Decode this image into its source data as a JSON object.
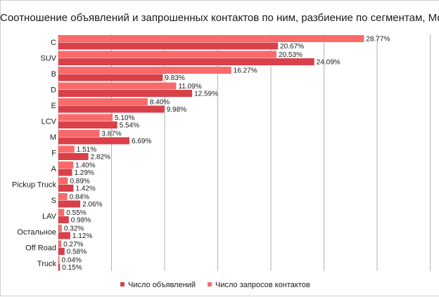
{
  "chart_data": {
    "type": "bar",
    "orientation": "horizontal",
    "title": "Соотношение объявлений и запрошенных контактов по ним, разбиение по сегментам, Москва, III квартал",
    "categories": [
      "C",
      "SUV",
      "B",
      "D",
      "E",
      "LCV",
      "M",
      "F",
      "A",
      "Pickup Truck",
      "S",
      "LAV",
      "Остальное",
      "Off Road",
      "Truck"
    ],
    "series": [
      {
        "name": "Число объявлений",
        "color": "#d9404a",
        "values": [
          20.67,
          24.09,
          9.83,
          12.59,
          9.98,
          5.54,
          6.69,
          2.82,
          1.29,
          1.42,
          2.06,
          0.98,
          1.12,
          0.58,
          0.15
        ],
        "labels": [
          "20.67%",
          "24.09%",
          "9.83%",
          "12.59%",
          "9.98%",
          "5.54%",
          "6.69%",
          "2.82%",
          "1.29%",
          "1.42%",
          "2.06%",
          "0.98%",
          "1.12%",
          "0.58%",
          "0.15%"
        ]
      },
      {
        "name": "Число запросов контактов",
        "color": "#fb6a6a",
        "values": [
          28.77,
          20.53,
          16.27,
          11.09,
          8.4,
          5.1,
          3.87,
          1.51,
          1.4,
          0.89,
          0.84,
          0.55,
          0.32,
          0.27,
          0.04
        ],
        "labels": [
          "28.77%",
          "20.53%",
          "16.27%",
          "11.09%",
          "8.40%",
          "5.10%",
          "3.87%",
          "1.51%",
          "1.40%",
          "0.89%",
          "0.84%",
          "0.55%",
          "0.32%",
          "0.27%",
          "0.04%"
        ]
      }
    ],
    "xlim": [
      0,
      35
    ],
    "grid": true,
    "legend_position": "bottom"
  }
}
